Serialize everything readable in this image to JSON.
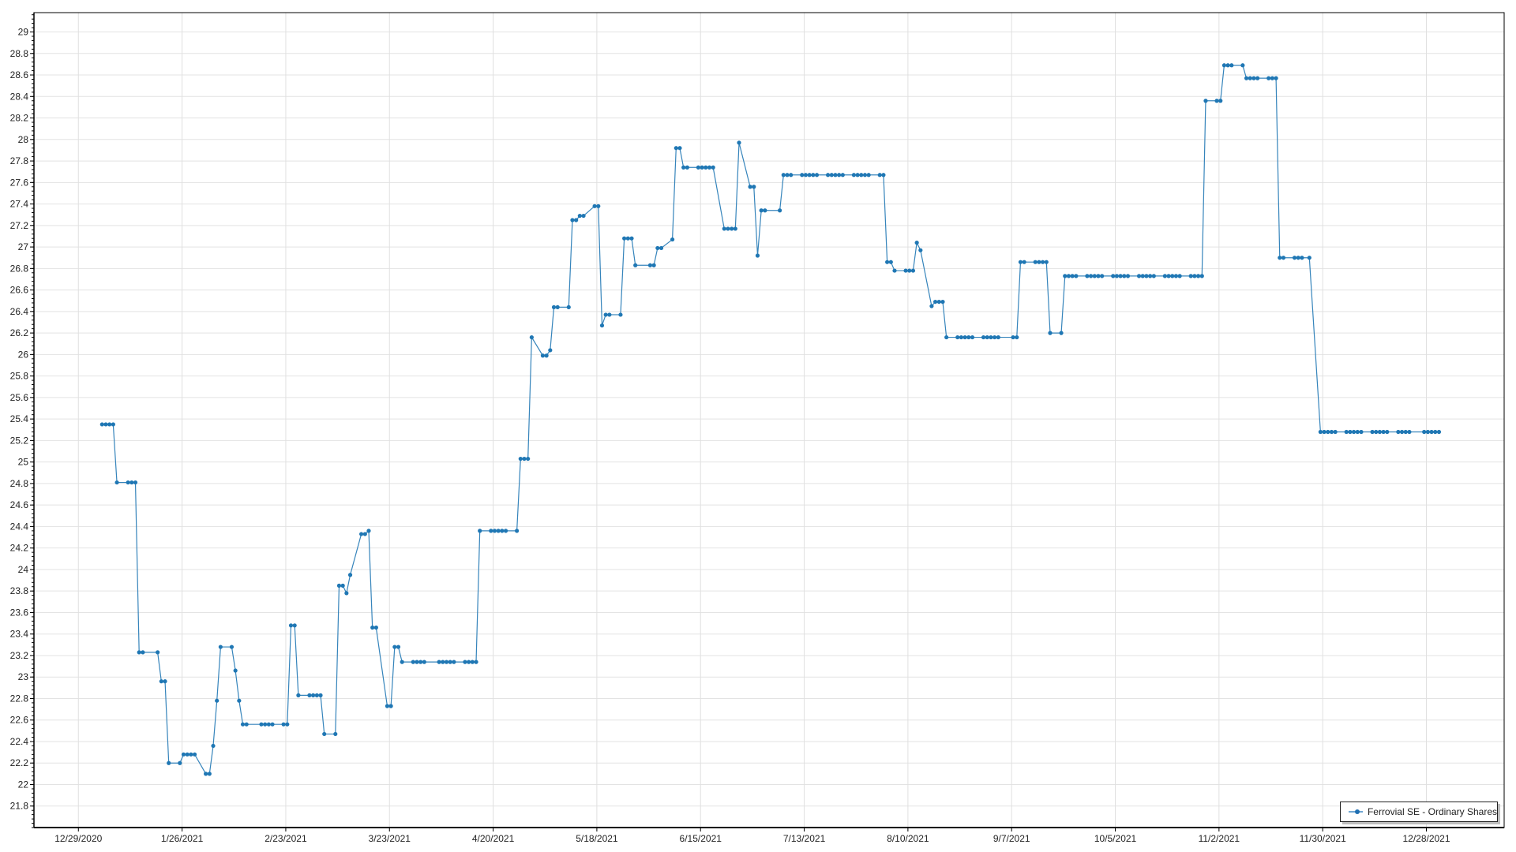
{
  "chart_data": {
    "type": "line",
    "title": "",
    "xlabel": "",
    "ylabel": "",
    "xlim": [
      "12/17/2020",
      "1/18/2022"
    ],
    "ylim": [
      21.6,
      29.18
    ],
    "grid": true,
    "legend_position": "bottom-right",
    "x_tick_labels": [
      "12/29/2020",
      "1/26/2021",
      "2/23/2021",
      "3/23/2021",
      "4/20/2021",
      "5/18/2021",
      "6/15/2021",
      "7/13/2021",
      "8/10/2021",
      "9/7/2021",
      "10/5/2021",
      "11/2/2021",
      "11/30/2021",
      "12/28/2021"
    ],
    "y_tick_labels": [
      "21.8",
      "22",
      "22.2",
      "22.4",
      "22.6",
      "22.8",
      "23",
      "23.2",
      "23.4",
      "23.6",
      "23.8",
      "24",
      "24.2",
      "24.4",
      "24.6",
      "24.8",
      "25",
      "25.2",
      "25.4",
      "25.6",
      "25.8",
      "26",
      "26.2",
      "26.4",
      "26.6",
      "26.8",
      "27",
      "27.2",
      "27.4",
      "27.6",
      "27.8",
      "28",
      "28.2",
      "28.4",
      "28.6",
      "28.8",
      "29"
    ],
    "series": [
      {
        "name": "Ferrovial SE - Ordinary Shares",
        "color": "#1f77b4",
        "points": [
          [
            "1/4/2021",
            25.35
          ],
          [
            "1/5/2021",
            25.35
          ],
          [
            "1/6/2021",
            25.35
          ],
          [
            "1/7/2021",
            25.35
          ],
          [
            "1/8/2021",
            24.81
          ],
          [
            "1/11/2021",
            24.81
          ],
          [
            "1/12/2021",
            24.81
          ],
          [
            "1/13/2021",
            24.81
          ],
          [
            "1/14/2021",
            23.23
          ],
          [
            "1/15/2021",
            23.23
          ],
          [
            "1/19/2021",
            23.23
          ],
          [
            "1/20/2021",
            22.96
          ],
          [
            "1/21/2021",
            22.96
          ],
          [
            "1/22/2021",
            22.2
          ],
          [
            "1/25/2021",
            22.2
          ],
          [
            "1/26/2021",
            22.28
          ],
          [
            "1/27/2021",
            22.28
          ],
          [
            "1/28/2021",
            22.28
          ],
          [
            "1/29/2021",
            22.28
          ],
          [
            "2/1/2021",
            22.1
          ],
          [
            "2/2/2021",
            22.1
          ],
          [
            "2/3/2021",
            22.36
          ],
          [
            "2/4/2021",
            22.78
          ],
          [
            "2/5/2021",
            23.28
          ],
          [
            "2/8/2021",
            23.28
          ],
          [
            "2/9/2021",
            23.06
          ],
          [
            "2/10/2021",
            22.78
          ],
          [
            "2/11/2021",
            22.56
          ],
          [
            "2/12/2021",
            22.56
          ],
          [
            "2/16/2021",
            22.56
          ],
          [
            "2/17/2021",
            22.56
          ],
          [
            "2/18/2021",
            22.56
          ],
          [
            "2/19/2021",
            22.56
          ],
          [
            "2/22/2021",
            22.56
          ],
          [
            "2/23/2021",
            22.56
          ],
          [
            "2/24/2021",
            23.48
          ],
          [
            "2/25/2021",
            23.48
          ],
          [
            "2/26/2021",
            22.83
          ],
          [
            "3/1/2021",
            22.83
          ],
          [
            "3/2/2021",
            22.83
          ],
          [
            "3/3/2021",
            22.83
          ],
          [
            "3/4/2021",
            22.83
          ],
          [
            "3/5/2021",
            22.47
          ],
          [
            "3/8/2021",
            22.47
          ],
          [
            "3/9/2021",
            23.85
          ],
          [
            "3/10/2021",
            23.85
          ],
          [
            "3/11/2021",
            23.78
          ],
          [
            "3/12/2021",
            23.95
          ],
          [
            "3/15/2021",
            24.33
          ],
          [
            "3/16/2021",
            24.33
          ],
          [
            "3/17/2021",
            24.36
          ],
          [
            "3/18/2021",
            23.46
          ],
          [
            "3/19/2021",
            23.46
          ],
          [
            "3/22/2021",
            22.73
          ],
          [
            "3/23/2021",
            22.73
          ],
          [
            "3/24/2021",
            23.28
          ],
          [
            "3/25/2021",
            23.28
          ],
          [
            "3/26/2021",
            23.14
          ],
          [
            "3/29/2021",
            23.14
          ],
          [
            "3/30/2021",
            23.14
          ],
          [
            "3/31/2021",
            23.14
          ],
          [
            "4/1/2021",
            23.14
          ],
          [
            "4/5/2021",
            23.14
          ],
          [
            "4/6/2021",
            23.14
          ],
          [
            "4/7/2021",
            23.14
          ],
          [
            "4/8/2021",
            23.14
          ],
          [
            "4/9/2021",
            23.14
          ],
          [
            "4/12/2021",
            23.14
          ],
          [
            "4/13/2021",
            23.14
          ],
          [
            "4/14/2021",
            23.14
          ],
          [
            "4/15/2021",
            23.14
          ],
          [
            "4/16/2021",
            24.36
          ],
          [
            "4/19/2021",
            24.36
          ],
          [
            "4/20/2021",
            24.36
          ],
          [
            "4/21/2021",
            24.36
          ],
          [
            "4/22/2021",
            24.36
          ],
          [
            "4/23/2021",
            24.36
          ],
          [
            "4/26/2021",
            24.36
          ],
          [
            "4/27/2021",
            25.03
          ],
          [
            "4/28/2021",
            25.03
          ],
          [
            "4/29/2021",
            25.03
          ],
          [
            "4/30/2021",
            26.16
          ],
          [
            "5/3/2021",
            25.99
          ],
          [
            "5/4/2021",
            25.99
          ],
          [
            "5/5/2021",
            26.04
          ],
          [
            "5/6/2021",
            26.44
          ],
          [
            "5/7/2021",
            26.44
          ],
          [
            "5/10/2021",
            26.44
          ],
          [
            "5/11/2021",
            27.25
          ],
          [
            "5/12/2021",
            27.25
          ],
          [
            "5/13/2021",
            27.29
          ],
          [
            "5/14/2021",
            27.29
          ],
          [
            "5/17/2021",
            27.38
          ],
          [
            "5/18/2021",
            27.38
          ],
          [
            "5/19/2021",
            26.27
          ],
          [
            "5/20/2021",
            26.37
          ],
          [
            "5/21/2021",
            26.37
          ],
          [
            "5/24/2021",
            26.37
          ],
          [
            "5/25/2021",
            27.08
          ],
          [
            "5/26/2021",
            27.08
          ],
          [
            "5/27/2021",
            27.08
          ],
          [
            "5/28/2021",
            26.83
          ],
          [
            "6/1/2021",
            26.83
          ],
          [
            "6/2/2021",
            26.83
          ],
          [
            "6/3/2021",
            26.99
          ],
          [
            "6/4/2021",
            26.99
          ],
          [
            "6/7/2021",
            27.07
          ],
          [
            "6/8/2021",
            27.92
          ],
          [
            "6/9/2021",
            27.92
          ],
          [
            "6/10/2021",
            27.74
          ],
          [
            "6/11/2021",
            27.74
          ],
          [
            "6/14/2021",
            27.74
          ],
          [
            "6/15/2021",
            27.74
          ],
          [
            "6/16/2021",
            27.74
          ],
          [
            "6/17/2021",
            27.74
          ],
          [
            "6/18/2021",
            27.74
          ],
          [
            "6/21/2021",
            27.17
          ],
          [
            "6/22/2021",
            27.17
          ],
          [
            "6/23/2021",
            27.17
          ],
          [
            "6/24/2021",
            27.17
          ],
          [
            "6/25/2021",
            27.97
          ],
          [
            "6/28/2021",
            27.56
          ],
          [
            "6/29/2021",
            27.56
          ],
          [
            "6/30/2021",
            26.92
          ],
          [
            "7/1/2021",
            27.34
          ],
          [
            "7/2/2021",
            27.34
          ],
          [
            "7/6/2021",
            27.34
          ],
          [
            "7/7/2021",
            27.67
          ],
          [
            "7/8/2021",
            27.67
          ],
          [
            "7/9/2021",
            27.67
          ],
          [
            "7/12/2021",
            27.67
          ],
          [
            "7/13/2021",
            27.67
          ],
          [
            "7/14/2021",
            27.67
          ],
          [
            "7/15/2021",
            27.67
          ],
          [
            "7/16/2021",
            27.67
          ],
          [
            "7/19/2021",
            27.67
          ],
          [
            "7/20/2021",
            27.67
          ],
          [
            "7/21/2021",
            27.67
          ],
          [
            "7/22/2021",
            27.67
          ],
          [
            "7/23/2021",
            27.67
          ],
          [
            "7/26/2021",
            27.67
          ],
          [
            "7/27/2021",
            27.67
          ],
          [
            "7/28/2021",
            27.67
          ],
          [
            "7/29/2021",
            27.67
          ],
          [
            "7/30/2021",
            27.67
          ],
          [
            "8/2/2021",
            27.67
          ],
          [
            "8/3/2021",
            27.67
          ],
          [
            "8/4/2021",
            26.86
          ],
          [
            "8/5/2021",
            26.86
          ],
          [
            "8/6/2021",
            26.78
          ],
          [
            "8/9/2021",
            26.78
          ],
          [
            "8/10/2021",
            26.78
          ],
          [
            "8/11/2021",
            26.78
          ],
          [
            "8/12/2021",
            27.04
          ],
          [
            "8/13/2021",
            26.97
          ],
          [
            "8/16/2021",
            26.45
          ],
          [
            "8/17/2021",
            26.49
          ],
          [
            "8/18/2021",
            26.49
          ],
          [
            "8/19/2021",
            26.49
          ],
          [
            "8/20/2021",
            26.16
          ],
          [
            "8/23/2021",
            26.16
          ],
          [
            "8/24/2021",
            26.16
          ],
          [
            "8/25/2021",
            26.16
          ],
          [
            "8/26/2021",
            26.16
          ],
          [
            "8/27/2021",
            26.16
          ],
          [
            "8/30/2021",
            26.16
          ],
          [
            "8/31/2021",
            26.16
          ],
          [
            "9/1/2021",
            26.16
          ],
          [
            "9/2/2021",
            26.16
          ],
          [
            "9/3/2021",
            26.16
          ],
          [
            "9/7/2021",
            26.16
          ],
          [
            "9/8/2021",
            26.16
          ],
          [
            "9/9/2021",
            26.86
          ],
          [
            "9/10/2021",
            26.86
          ],
          [
            "9/13/2021",
            26.86
          ],
          [
            "9/14/2021",
            26.86
          ],
          [
            "9/15/2021",
            26.86
          ],
          [
            "9/16/2021",
            26.86
          ],
          [
            "9/17/2021",
            26.2
          ],
          [
            "9/20/2021",
            26.2
          ],
          [
            "9/21/2021",
            26.73
          ],
          [
            "9/22/2021",
            26.73
          ],
          [
            "9/23/2021",
            26.73
          ],
          [
            "9/24/2021",
            26.73
          ],
          [
            "9/27/2021",
            26.73
          ],
          [
            "9/28/2021",
            26.73
          ],
          [
            "9/29/2021",
            26.73
          ],
          [
            "9/30/2021",
            26.73
          ],
          [
            "10/1/2021",
            26.73
          ],
          [
            "10/4/2021",
            26.73
          ],
          [
            "10/5/2021",
            26.73
          ],
          [
            "10/6/2021",
            26.73
          ],
          [
            "10/7/2021",
            26.73
          ],
          [
            "10/8/2021",
            26.73
          ],
          [
            "10/11/2021",
            26.73
          ],
          [
            "10/12/2021",
            26.73
          ],
          [
            "10/13/2021",
            26.73
          ],
          [
            "10/14/2021",
            26.73
          ],
          [
            "10/15/2021",
            26.73
          ],
          [
            "10/18/2021",
            26.73
          ],
          [
            "10/19/2021",
            26.73
          ],
          [
            "10/20/2021",
            26.73
          ],
          [
            "10/21/2021",
            26.73
          ],
          [
            "10/22/2021",
            26.73
          ],
          [
            "10/25/2021",
            26.73
          ],
          [
            "10/26/2021",
            26.73
          ],
          [
            "10/27/2021",
            26.73
          ],
          [
            "10/28/2021",
            26.73
          ],
          [
            "10/29/2021",
            28.36
          ],
          [
            "11/1/2021",
            28.36
          ],
          [
            "11/2/2021",
            28.36
          ],
          [
            "11/3/2021",
            28.69
          ],
          [
            "11/4/2021",
            28.69
          ],
          [
            "11/5/2021",
            28.69
          ],
          [
            "11/8/2021",
            28.69
          ],
          [
            "11/9/2021",
            28.57
          ],
          [
            "11/10/2021",
            28.57
          ],
          [
            "11/11/2021",
            28.57
          ],
          [
            "11/12/2021",
            28.57
          ],
          [
            "11/15/2021",
            28.57
          ],
          [
            "11/16/2021",
            28.57
          ],
          [
            "11/17/2021",
            28.57
          ],
          [
            "11/18/2021",
            26.9
          ],
          [
            "11/19/2021",
            26.9
          ],
          [
            "11/22/2021",
            26.9
          ],
          [
            "11/23/2021",
            26.9
          ],
          [
            "11/24/2021",
            26.9
          ],
          [
            "11/26/2021",
            26.9
          ],
          [
            "11/29/2021",
            25.28
          ],
          [
            "11/30/2021",
            25.28
          ],
          [
            "12/1/2021",
            25.28
          ],
          [
            "12/2/2021",
            25.28
          ],
          [
            "12/3/2021",
            25.28
          ],
          [
            "12/6/2021",
            25.28
          ],
          [
            "12/7/2021",
            25.28
          ],
          [
            "12/8/2021",
            25.28
          ],
          [
            "12/9/2021",
            25.28
          ],
          [
            "12/10/2021",
            25.28
          ],
          [
            "12/13/2021",
            25.28
          ],
          [
            "12/14/2021",
            25.28
          ],
          [
            "12/15/2021",
            25.28
          ],
          [
            "12/16/2021",
            25.28
          ],
          [
            "12/17/2021",
            25.28
          ],
          [
            "12/20/2021",
            25.28
          ],
          [
            "12/21/2021",
            25.28
          ],
          [
            "12/22/2021",
            25.28
          ],
          [
            "12/23/2021",
            25.28
          ],
          [
            "12/27/2021",
            25.28
          ],
          [
            "12/28/2021",
            25.28
          ],
          [
            "12/29/2021",
            25.28
          ],
          [
            "12/30/2021",
            25.28
          ],
          [
            "12/31/2021",
            25.28
          ]
        ]
      }
    ]
  },
  "legend": {
    "label": "Ferrovial SE - Ordinary Shares"
  }
}
